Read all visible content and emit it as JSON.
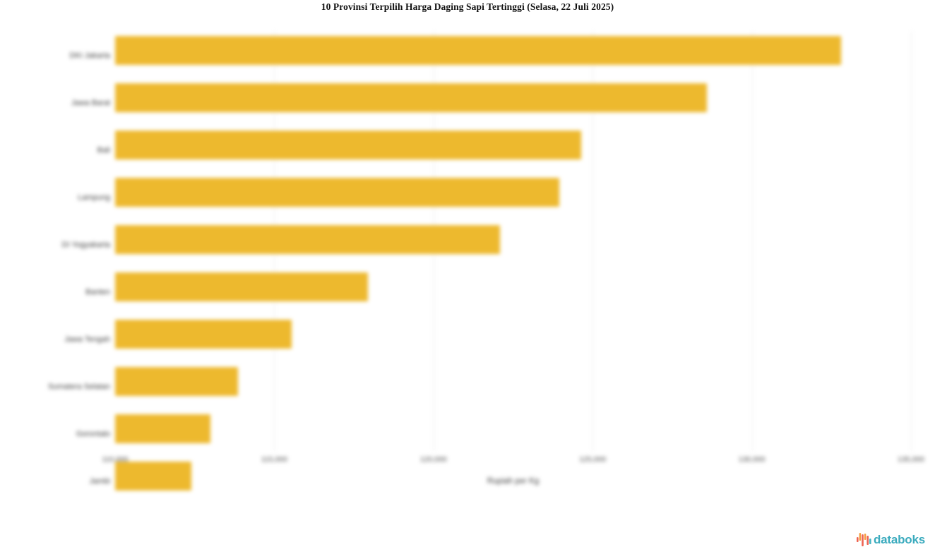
{
  "title": "10 Provinsi Terpilih Harga Daging Sapi Tertinggi (Selasa, 22 Juli 2025)",
  "chart_data": {
    "type": "bar",
    "orientation": "horizontal",
    "title": "10 Provinsi Terpilih Harga Daging Sapi Tertinggi (Selasa, 22 Juli 2025)",
    "xlabel": "Rupiah per Kg",
    "ylabel": "",
    "categories": [
      "DKI Jakarta",
      "Jawa Barat",
      "Bali",
      "Lampung",
      "DI Yogyakarta",
      "Banten",
      "Jawa Tengah",
      "Sumatera Selatan",
      "Gorontalo",
      "Jambi"
    ],
    "values": [
      132800,
      128600,
      124650,
      123950,
      122100,
      117950,
      115550,
      113850,
      113000,
      112400
    ],
    "xlim": [
      110000,
      135000
    ],
    "x_ticks": [
      110000,
      115000,
      120000,
      125000,
      130000,
      135000
    ],
    "x_tick_labels": [
      "110,000",
      "115,000",
      "120,000",
      "125,000",
      "130,000",
      "135,000"
    ],
    "bar_color": "#EDB92E",
    "grid": "vertical",
    "legend": "none",
    "text_blurred": true
  },
  "branding": {
    "logo_text": "databoks",
    "logo_text_color": "#3BABBE",
    "logo_bar_colors": [
      "#EE6352",
      "#F59E42",
      "#EE6352",
      "#F59E42",
      "#EE6352",
      "#45B5C4"
    ]
  },
  "colors": {
    "background": "#FFFFFF",
    "grid_line": "#E9E9E9",
    "axis_text": "#4A4A4A",
    "title_text": "#111111"
  }
}
